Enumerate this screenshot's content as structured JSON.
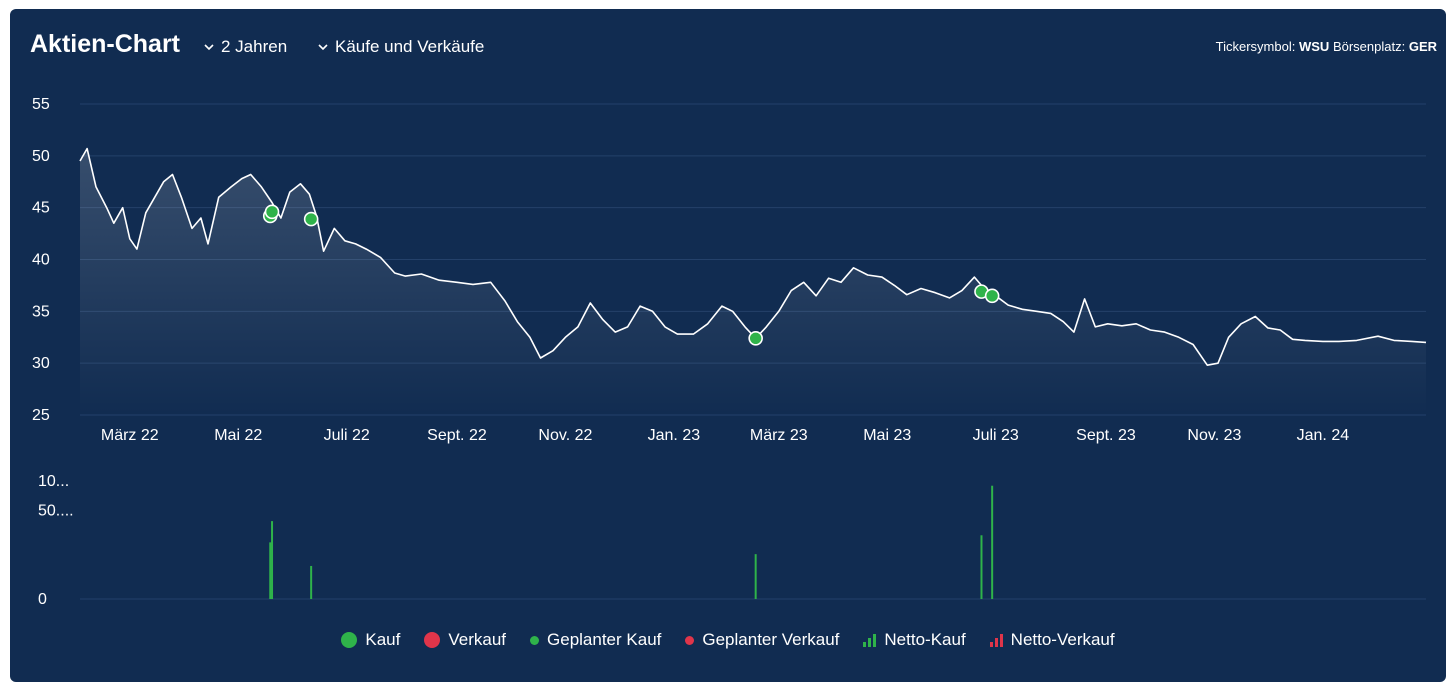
{
  "header": {
    "title": "Aktien-Chart",
    "range_label": "2 Jahren",
    "filter_label": "Käufe und Verkäufe",
    "ticker_label": "Tickersymbol:",
    "ticker_value": "WSU",
    "exchange_label": "Börsenplatz:",
    "exchange_value": "GER"
  },
  "colors": {
    "background": "#112c51",
    "line": "#ffffff",
    "buy": "#2fb34a",
    "sell": "#e0354a",
    "grid": "#24416a"
  },
  "legend": [
    {
      "label": "Kauf",
      "type": "big-dot",
      "color": "#2fb34a"
    },
    {
      "label": "Verkauf",
      "type": "big-dot",
      "color": "#e0354a"
    },
    {
      "label": "Geplanter Kauf",
      "type": "small-dot",
      "color": "#2fb34a"
    },
    {
      "label": "Geplanter Verkauf",
      "type": "small-dot",
      "color": "#e0354a"
    },
    {
      "label": "Netto-Kauf",
      "type": "bars",
      "color": "#2fb34a"
    },
    {
      "label": "Netto-Verkauf",
      "type": "bars",
      "color": "#e0354a"
    }
  ],
  "chart_data": [
    {
      "type": "line",
      "title": "",
      "ylim": [
        25,
        55
      ],
      "y_ticks": [
        55,
        50,
        45,
        40,
        35,
        30,
        25
      ],
      "x_ticks": [
        "März 22",
        "Mai 22",
        "Juli 22",
        "Sept. 22",
        "Nov. 22",
        "Jan. 23",
        "März 23",
        "Mai 23",
        "Juli 23",
        "Sept. 23",
        "Nov. 23",
        "Jan. 24"
      ],
      "xlim": [
        "2022-02-01",
        "2024-02-28"
      ],
      "grid": true,
      "series": [
        {
          "points": [
            [
              "2022-02-01",
              49.5
            ],
            [
              "2022-02-05",
              50.7
            ],
            [
              "2022-02-10",
              47
            ],
            [
              "2022-02-16",
              45
            ],
            [
              "2022-02-20",
              43.5
            ],
            [
              "2022-02-25",
              45
            ],
            [
              "2022-03-01",
              42
            ],
            [
              "2022-03-05",
              41
            ],
            [
              "2022-03-10",
              44.5
            ],
            [
              "2022-03-15",
              46
            ],
            [
              "2022-03-20",
              47.5
            ],
            [
              "2022-03-25",
              48.2
            ],
            [
              "2022-03-30",
              46
            ],
            [
              "2022-04-05",
              43
            ],
            [
              "2022-04-10",
              44
            ],
            [
              "2022-04-14",
              41.5
            ],
            [
              "2022-04-20",
              46
            ],
            [
              "2022-04-27",
              47
            ],
            [
              "2022-05-03",
              47.8
            ],
            [
              "2022-05-08",
              48.2
            ],
            [
              "2022-05-14",
              47
            ],
            [
              "2022-05-20",
              45.5
            ],
            [
              "2022-05-25",
              44
            ],
            [
              "2022-05-30",
              46.5
            ],
            [
              "2022-06-05",
              47.3
            ],
            [
              "2022-06-10",
              46.3
            ],
            [
              "2022-06-14",
              44.2
            ],
            [
              "2022-06-18",
              40.8
            ],
            [
              "2022-06-24",
              43
            ],
            [
              "2022-06-30",
              41.8
            ],
            [
              "2022-07-06",
              41.5
            ],
            [
              "2022-07-12",
              41
            ],
            [
              "2022-07-20",
              40.2
            ],
            [
              "2022-07-28",
              38.7
            ],
            [
              "2022-08-03",
              38.4
            ],
            [
              "2022-08-12",
              38.6
            ],
            [
              "2022-08-22",
              38
            ],
            [
              "2022-09-01",
              37.8
            ],
            [
              "2022-09-10",
              37.6
            ],
            [
              "2022-09-20",
              37.8
            ],
            [
              "2022-09-28",
              36
            ],
            [
              "2022-10-05",
              34
            ],
            [
              "2022-10-12",
              32.5
            ],
            [
              "2022-10-18",
              30.5
            ],
            [
              "2022-10-25",
              31.2
            ],
            [
              "2022-11-01",
              32.5
            ],
            [
              "2022-11-08",
              33.5
            ],
            [
              "2022-11-15",
              35.8
            ],
            [
              "2022-11-22",
              34.2
            ],
            [
              "2022-11-29",
              33
            ],
            [
              "2022-12-06",
              33.5
            ],
            [
              "2022-12-13",
              35.5
            ],
            [
              "2022-12-20",
              35
            ],
            [
              "2022-12-27",
              33.5
            ],
            [
              "2023-01-03",
              32.8
            ],
            [
              "2023-01-12",
              32.8
            ],
            [
              "2023-01-20",
              33.8
            ],
            [
              "2023-01-28",
              35.5
            ],
            [
              "2023-02-03",
              35
            ],
            [
              "2023-02-10",
              33.5
            ],
            [
              "2023-02-16",
              32.4
            ],
            [
              "2023-02-22",
              33.5
            ],
            [
              "2023-03-01",
              35
            ],
            [
              "2023-03-08",
              37
            ],
            [
              "2023-03-15",
              37.8
            ],
            [
              "2023-03-22",
              36.5
            ],
            [
              "2023-03-29",
              38.2
            ],
            [
              "2023-04-05",
              37.8
            ],
            [
              "2023-04-12",
              39.2
            ],
            [
              "2023-04-20",
              38.5
            ],
            [
              "2023-04-28",
              38.3
            ],
            [
              "2023-05-05",
              37.5
            ],
            [
              "2023-05-12",
              36.6
            ],
            [
              "2023-05-20",
              37.2
            ],
            [
              "2023-05-28",
              36.8
            ],
            [
              "2023-06-05",
              36.3
            ],
            [
              "2023-06-12",
              37
            ],
            [
              "2023-06-19",
              38.3
            ],
            [
              "2023-06-26",
              36.9
            ],
            [
              "2023-07-01",
              36.5
            ],
            [
              "2023-07-08",
              35.6
            ],
            [
              "2023-07-16",
              35.2
            ],
            [
              "2023-07-24",
              35
            ],
            [
              "2023-08-01",
              34.8
            ],
            [
              "2023-08-08",
              34
            ],
            [
              "2023-08-14",
              33
            ],
            [
              "2023-08-20",
              36.2
            ],
            [
              "2023-08-26",
              33.5
            ],
            [
              "2023-09-02",
              33.8
            ],
            [
              "2023-09-10",
              33.6
            ],
            [
              "2023-09-18",
              33.8
            ],
            [
              "2023-09-26",
              33.2
            ],
            [
              "2023-10-04",
              33
            ],
            [
              "2023-10-12",
              32.5
            ],
            [
              "2023-10-20",
              31.8
            ],
            [
              "2023-10-28",
              29.8
            ],
            [
              "2023-11-03",
              30
            ],
            [
              "2023-11-09",
              32.5
            ],
            [
              "2023-11-16",
              33.8
            ],
            [
              "2023-11-24",
              34.5
            ],
            [
              "2023-12-01",
              33.4
            ],
            [
              "2023-12-08",
              33.2
            ],
            [
              "2023-12-15",
              32.3
            ],
            [
              "2023-12-22",
              32.2
            ],
            [
              "2024-01-01",
              32.1
            ],
            [
              "2024-01-10",
              32.1
            ],
            [
              "2024-01-20",
              32.2
            ],
            [
              "2024-02-01",
              32.6
            ],
            [
              "2024-02-10",
              32.2
            ],
            [
              "2024-02-20",
              32.1
            ],
            [
              "2024-02-28",
              32.0
            ]
          ]
        }
      ],
      "markers": [
        {
          "kind": "Kauf",
          "date": "2022-05-19",
          "y": 44.2
        },
        {
          "kind": "Kauf",
          "date": "2022-05-20",
          "y": 44.6
        },
        {
          "kind": "Kauf",
          "date": "2022-06-11",
          "y": 43.9
        },
        {
          "kind": "Kauf",
          "date": "2023-02-16",
          "y": 32.4
        },
        {
          "kind": "Kauf",
          "date": "2023-06-23",
          "y": 36.9
        },
        {
          "kind": "Kauf",
          "date": "2023-06-29",
          "y": 36.5
        }
      ]
    },
    {
      "type": "bar",
      "title": "",
      "y_ticks": [
        "10...",
        "50....",
        "0"
      ],
      "ylim": [
        0,
        100
      ],
      "series": [
        {
          "color": "#2fb34a",
          "points": [
            [
              "2022-05-19",
              48
            ],
            [
              "2022-05-20",
              66
            ],
            [
              "2022-06-11",
              28
            ],
            [
              "2023-02-16",
              38
            ],
            [
              "2023-06-23",
              54
            ],
            [
              "2023-06-29",
              96
            ]
          ]
        }
      ]
    }
  ]
}
